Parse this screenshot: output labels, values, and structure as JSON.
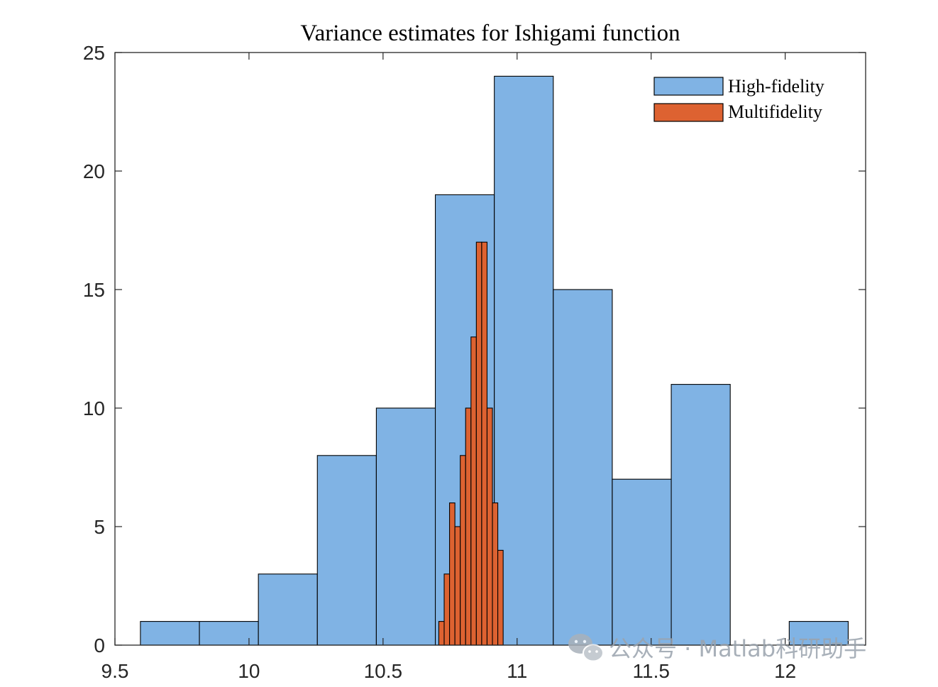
{
  "chart_data": {
    "type": "bar",
    "title": "Variance estimates for Ishigami function",
    "xlabel": "",
    "ylabel": "",
    "xlim": [
      9.5,
      12.3
    ],
    "ylim": [
      0,
      25
    ],
    "xticks": [
      9.5,
      10,
      10.5,
      11,
      11.5,
      12
    ],
    "xtick_labels": [
      "9.5",
      "10",
      "10.5",
      "11",
      "11.5",
      "12"
    ],
    "yticks": [
      0,
      5,
      10,
      15,
      20,
      25
    ],
    "ytick_labels": [
      "0",
      "5",
      "10",
      "15",
      "20",
      "25"
    ],
    "legend_position": "top-right",
    "series": [
      {
        "name": "High-fidelity",
        "color": "#80b3e4",
        "bin_edges": [
          9.595,
          9.815,
          10.035,
          10.255,
          10.475,
          10.695,
          10.915,
          11.135,
          11.355,
          11.575,
          11.795,
          12.015,
          12.235
        ],
        "values": [
          1,
          1,
          3,
          8,
          10,
          19,
          24,
          15,
          7,
          11,
          0,
          1
        ]
      },
      {
        "name": "Multifidelity",
        "color": "#dd6231",
        "bin_edges": [
          10.708,
          10.728,
          10.748,
          10.768,
          10.788,
          10.808,
          10.828,
          10.848,
          10.868,
          10.888,
          10.908,
          10.928,
          10.948
        ],
        "values": [
          1,
          3,
          6,
          5,
          8,
          10,
          13,
          17,
          17,
          10,
          6,
          4
        ]
      }
    ]
  },
  "watermark": {
    "icon": "wechat-icon",
    "text": "公众号 · Matlab科研助手"
  }
}
